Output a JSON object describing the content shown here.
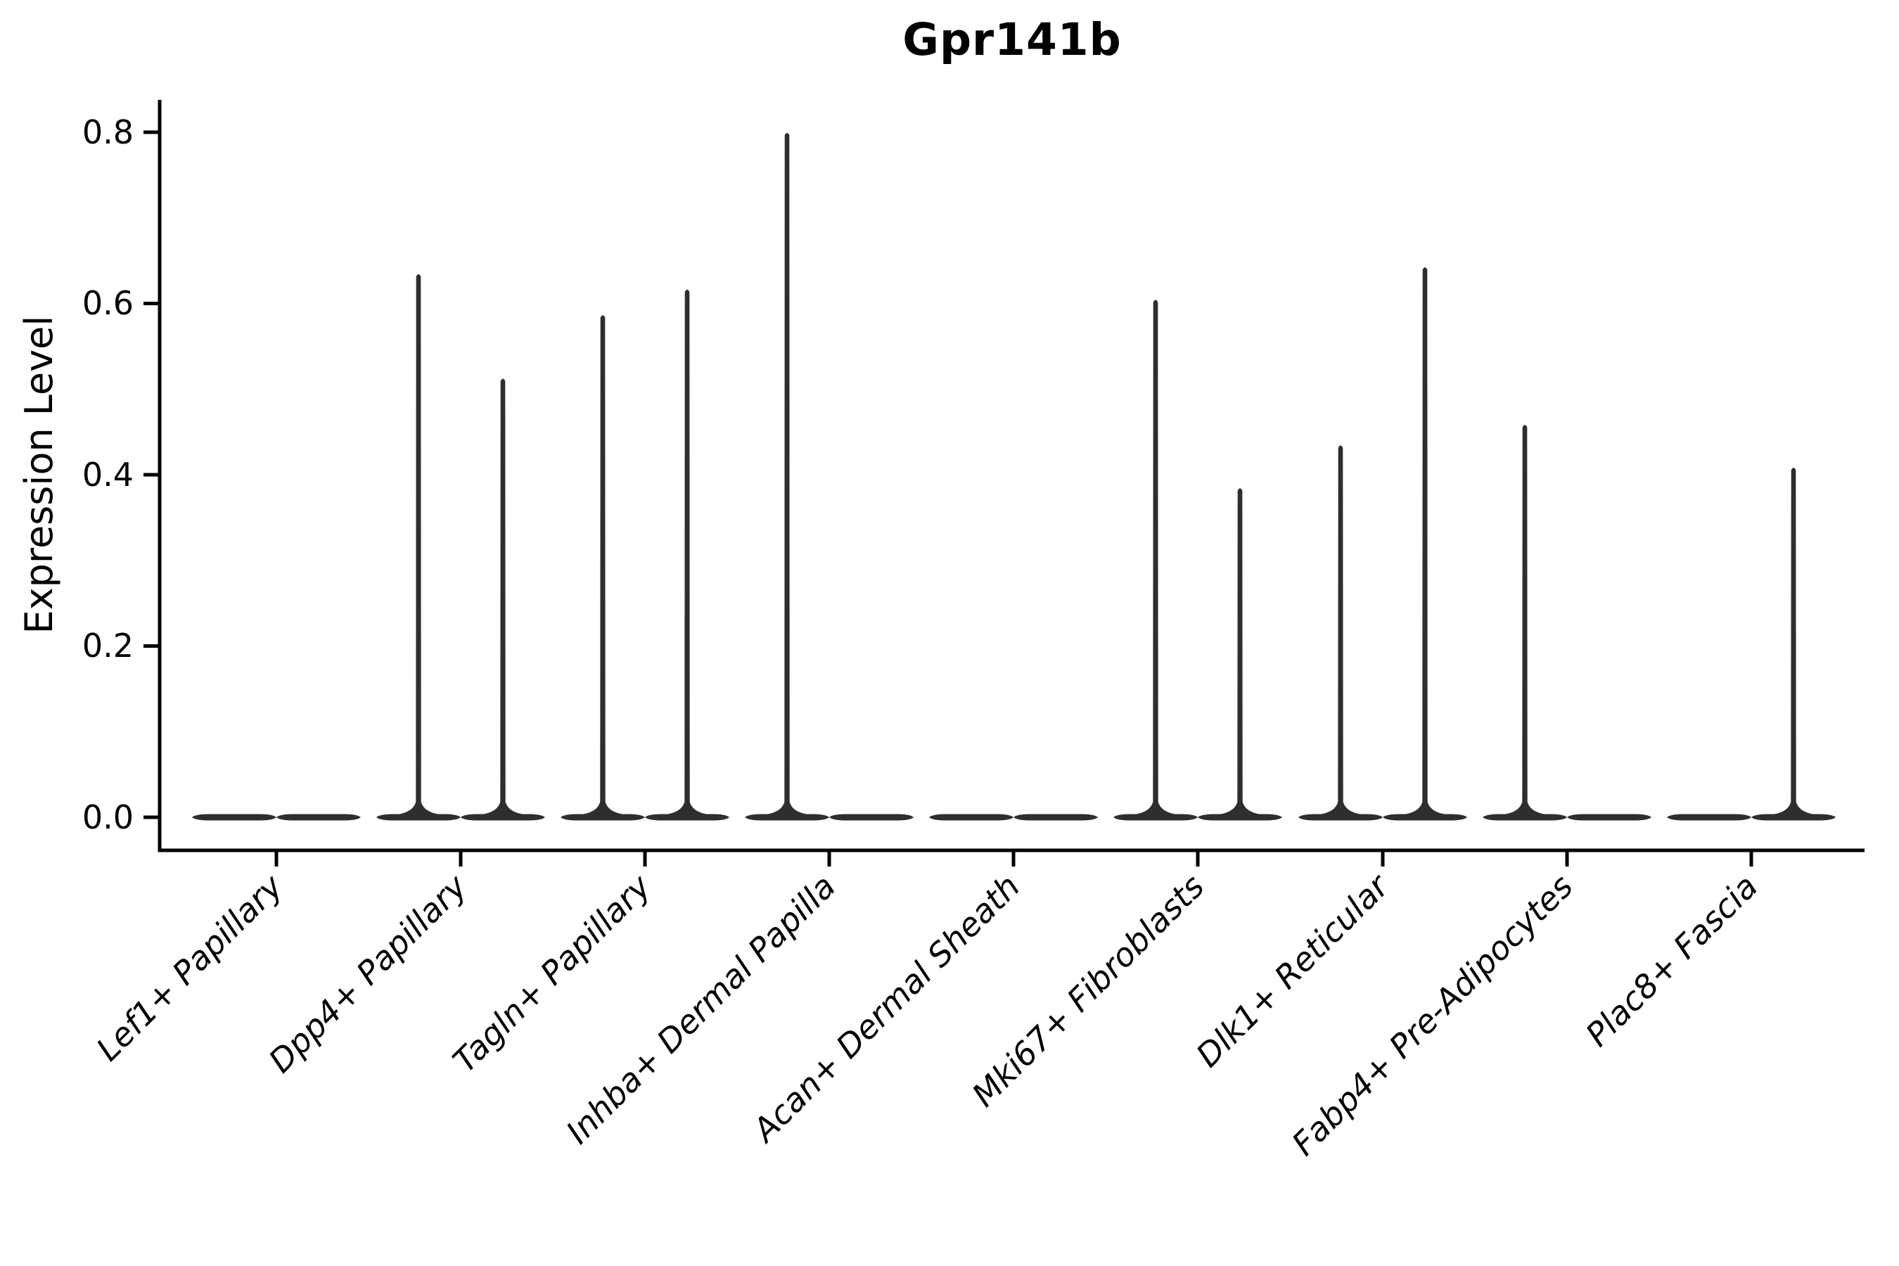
{
  "chart_data": {
    "type": "violin",
    "title": "Gpr141b",
    "ylabel": "Expression Level",
    "xlabel": "",
    "ylim": [
      -0.04,
      0.84
    ],
    "yticks": [
      0.0,
      0.2,
      0.4,
      0.6,
      0.8
    ],
    "ytick_labels": [
      "0.0",
      "0.2",
      "0.4",
      "0.6",
      "0.8"
    ],
    "grid": false,
    "legend": "none",
    "categories": [
      "Lef1+ Papillary",
      "Dpp4+ Papillary",
      "Tagln+ Papillary",
      "Inhba+ Dermal Papilla",
      "Acan+ Dermal Sheath",
      "Mki67+ Fibroblasts",
      "Dlk1+ Reticular",
      "Fabp4+ Pre-Adipocytes",
      "Plac8+ Fascia"
    ],
    "violins_per_category": 2,
    "series": [
      {
        "name": "violin-1",
        "max_values": [
          0,
          0.634,
          0.586,
          0.799,
          0,
          0.604,
          0.434,
          0.458,
          0
        ]
      },
      {
        "name": "violin-2",
        "max_values": [
          0,
          0.512,
          0.616,
          0,
          0,
          0.384,
          0.642,
          0,
          0.408
        ]
      }
    ],
    "colors": {
      "violin": "#2e2e2e",
      "axis": "#000000",
      "text": "#000000",
      "background": "#ffffff"
    }
  }
}
